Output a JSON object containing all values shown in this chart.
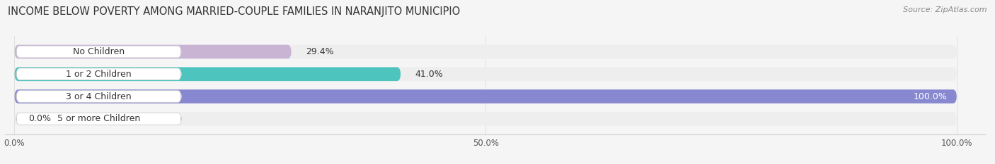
{
  "title": "INCOME BELOW POVERTY AMONG MARRIED-COUPLE FAMILIES IN NARANJITO MUNICIPIO",
  "source": "Source: ZipAtlas.com",
  "categories": [
    "No Children",
    "1 or 2 Children",
    "3 or 4 Children",
    "5 or more Children"
  ],
  "values": [
    29.4,
    41.0,
    100.0,
    0.0
  ],
  "bar_colors": [
    "#c9b4d4",
    "#4ec4be",
    "#8888d0",
    "#f9a0b4"
  ],
  "bar_bg_color": "#eeeeee",
  "xlim": [
    0,
    100
  ],
  "xticks": [
    0.0,
    50.0,
    100.0
  ],
  "xtick_labels": [
    "0.0%",
    "50.0%",
    "100.0%"
  ],
  "title_fontsize": 10.5,
  "source_fontsize": 8,
  "label_fontsize": 9,
  "value_fontsize": 9,
  "tick_fontsize": 8.5,
  "bar_height": 0.62,
  "background_color": "#f5f5f5",
  "bar_area_bg": "#f5f5f5"
}
